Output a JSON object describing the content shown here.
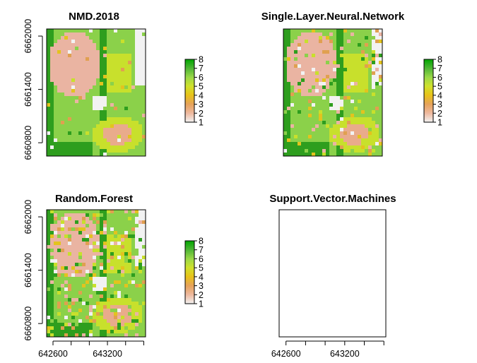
{
  "chart_data": [
    {
      "type": "heatmap",
      "title": "NMD.2018",
      "xlabel": "",
      "ylabel": "",
      "xlim": [
        642530,
        643620
      ],
      "ylim": [
        6660650,
        6662080
      ],
      "y_ticks": [
        6660800,
        6661400,
        6662000
      ],
      "y_tick_labels": [
        "6660800",
        "6661400",
        "6662000"
      ],
      "x_ticks": [],
      "x_tick_labels": [],
      "legend": {
        "type": "colorbar",
        "placement": "right",
        "range": [
          1,
          8
        ],
        "labels": [
          "1",
          "2",
          "3",
          "4",
          "5",
          "6",
          "7",
          "8"
        ]
      },
      "has_raster": true,
      "seed": 11
    },
    {
      "type": "heatmap",
      "title": "Single.Layer.Neural.Network",
      "xlabel": "",
      "ylabel": "",
      "xlim": [
        642530,
        643620
      ],
      "ylim": [
        6660650,
        6662080
      ],
      "y_ticks": [],
      "y_tick_labels": [],
      "x_ticks": [],
      "x_tick_labels": [],
      "legend": {
        "type": "colorbar",
        "placement": "right",
        "range": [
          1,
          8
        ],
        "labels": [
          "1",
          "2",
          "3",
          "4",
          "5",
          "6",
          "7",
          "8"
        ]
      },
      "has_raster": true,
      "seed": 23
    },
    {
      "type": "heatmap",
      "title": "Random.Forest",
      "xlabel": "",
      "ylabel": "",
      "xlim": [
        642530,
        643620
      ],
      "ylim": [
        6660650,
        6662080
      ],
      "y_ticks": [
        6660800,
        6661400,
        6662000
      ],
      "y_tick_labels": [
        "6660800",
        "6661400",
        "6662000"
      ],
      "x_ticks": [
        642600,
        643200
      ],
      "x_tick_labels": [
        "642600",
        "643200"
      ],
      "x_minor_ticks": [
        642600,
        642800,
        643000,
        643200,
        643400,
        643600
      ],
      "legend": {
        "type": "colorbar",
        "placement": "right",
        "range": [
          1,
          8
        ],
        "labels": [
          "1",
          "2",
          "3",
          "4",
          "5",
          "6",
          "7",
          "8"
        ]
      },
      "has_raster": true,
      "seed": 37
    },
    {
      "type": "heatmap",
      "title": "Support.Vector.Machines",
      "xlabel": "",
      "ylabel": "",
      "xlim": [
        642530,
        643620
      ],
      "ylim": [
        6660650,
        6662080
      ],
      "y_ticks": [],
      "y_tick_labels": [],
      "x_ticks": [
        642600,
        643200
      ],
      "x_tick_labels": [
        "642600",
        "643200"
      ],
      "x_minor_ticks": [
        642600,
        642800,
        643000,
        643200,
        643400,
        643600
      ],
      "legend": null,
      "has_raster": false,
      "seed": 0
    }
  ],
  "palette": {
    "class_colors": [
      "#f2f2f2",
      "#eab4a2",
      "#e9ab8b",
      "#e0a050",
      "#e3c31e",
      "#c8e02c",
      "#8bd14a",
      "#2e9e1e"
    ],
    "bar_gradient": [
      "#f2f2f2",
      "#eeb99f",
      "#e6a25a",
      "#e8c21a",
      "#d0e12c",
      "#9ad848",
      "#4fb635",
      "#00a600"
    ]
  }
}
